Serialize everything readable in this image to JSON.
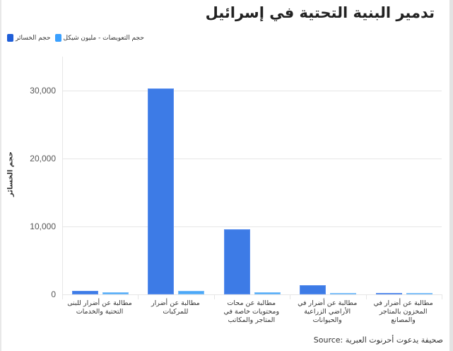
{
  "title": "تدمير البنية التحتية في إسرائيل",
  "legend": [
    {
      "label": "حجم الخسائر",
      "color": "#1f5ed8"
    },
    {
      "label": "حجم التعويضات - مليون شيكل",
      "color": "#3aa0ff"
    }
  ],
  "source": "Source: صحيفة يدعوت أحرنوت العبرية",
  "chart_data": {
    "type": "bar",
    "title": "تدمير البنية التحتية في إسرائيل",
    "xlabel": "",
    "ylabel": "حجم الخسائر",
    "ylim": [
      0,
      35000
    ],
    "yticks": [
      0,
      10000,
      20000,
      30000
    ],
    "ytick_labels": [
      "0",
      "10,000",
      "20,000",
      "30,000"
    ],
    "grid": true,
    "legend_position": "top-left",
    "categories": [
      "مطالبة عن أضرار للبنى التحتية والخدمات",
      "مطالبة عن أضرار للمركبات",
      "مطالبة عن محات ومحتويات خاصة في المتاجر والمكاتب",
      "مطالبة عن أضرار في الأراضي الزراعية والحيوانات",
      "مطالبة عن أضرار في المخزون بالمتاجر والمصانع"
    ],
    "series": [
      {
        "name": "حجم الخسائر",
        "color": "#3d7be6",
        "values": [
          520,
          30300,
          9600,
          1350,
          250
        ]
      },
      {
        "name": "حجم التعويضات - مليون شيكل",
        "color": "#4ba8f7",
        "values": [
          330,
          500,
          330,
          40,
          40
        ]
      }
    ]
  }
}
